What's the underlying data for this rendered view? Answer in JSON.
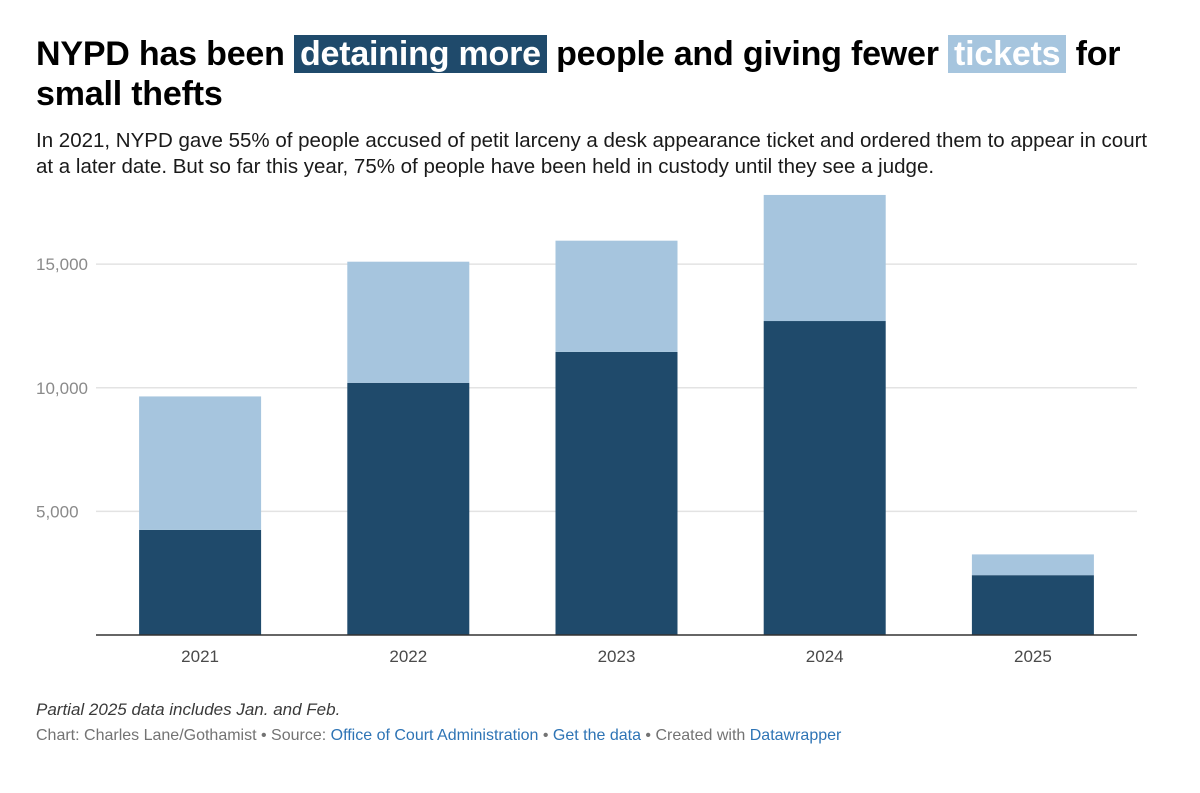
{
  "title": {
    "part1": "NYPD has been ",
    "highlight1": "detaining more",
    "part2": " people and giving fewer ",
    "highlight2": "tickets",
    "part3": " for small thefts"
  },
  "subtitle": "In 2021, NYPD gave 55% of people accused of petit larceny a desk appearance ticket and ordered them to appear in court at a later date. But so far this year, 75% of people have been held in custody until they see a judge.",
  "note": "Partial 2025 data includes Jan. and Feb.",
  "footer": {
    "chart_credit": "Chart: Charles Lane/Gothamist",
    "sep1": " • Source: ",
    "source": "Office of Court Administration",
    "sep2": " • ",
    "get_data": "Get the data",
    "sep3": " • Created with ",
    "tool": "Datawrapper"
  },
  "colors": {
    "detained": "#1f4a6b",
    "tickets": "#a6c5de",
    "gridline": "#e3e3e3",
    "axis": "#333333"
  },
  "chart_data": {
    "type": "bar",
    "stacked": true,
    "categories": [
      "2021",
      "2022",
      "2023",
      "2024",
      "2025"
    ],
    "series": [
      {
        "name": "detaining more",
        "values": [
          4250,
          10200,
          11450,
          12700,
          2420
        ]
      },
      {
        "name": "tickets",
        "values": [
          5400,
          4900,
          4500,
          5100,
          840
        ]
      }
    ],
    "yticks": [
      5000,
      10000,
      15000
    ],
    "ytick_labels": [
      "5,000",
      "10,000",
      "15,000"
    ],
    "ylim": [
      0,
      18000
    ],
    "grid": true,
    "xlabel": "",
    "ylabel": ""
  }
}
